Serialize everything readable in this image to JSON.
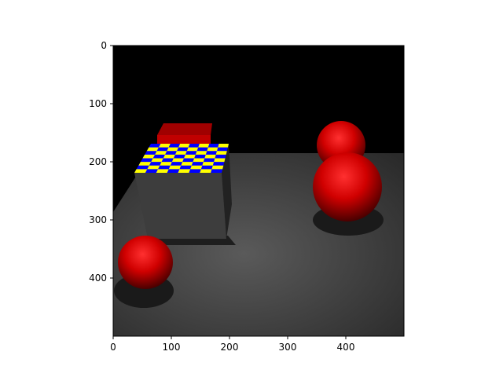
{
  "figure": {
    "x_ticks": [
      "0",
      "100",
      "200",
      "300",
      "400"
    ],
    "y_ticks": [
      "0",
      "100",
      "200",
      "300",
      "400"
    ]
  },
  "image": {
    "width": 500,
    "height": 500,
    "xlim": [
      0,
      500
    ],
    "ylim": [
      500,
      0
    ],
    "colors": {
      "sky": "#000000",
      "floor": "#4a4a4a",
      "sphere": "#e00000",
      "checker_a": "#ffff00",
      "checker_b": "#0000ff",
      "cube_side": "#3e3e3e",
      "red_box": "#cc0000"
    },
    "objects": [
      {
        "kind": "sphere",
        "name": "front-left-sphere"
      },
      {
        "kind": "sphere",
        "name": "back-right-sphere"
      },
      {
        "kind": "sphere",
        "name": "front-right-sphere"
      },
      {
        "kind": "cube",
        "name": "checkered-cube"
      },
      {
        "kind": "box",
        "name": "red-box"
      }
    ]
  }
}
